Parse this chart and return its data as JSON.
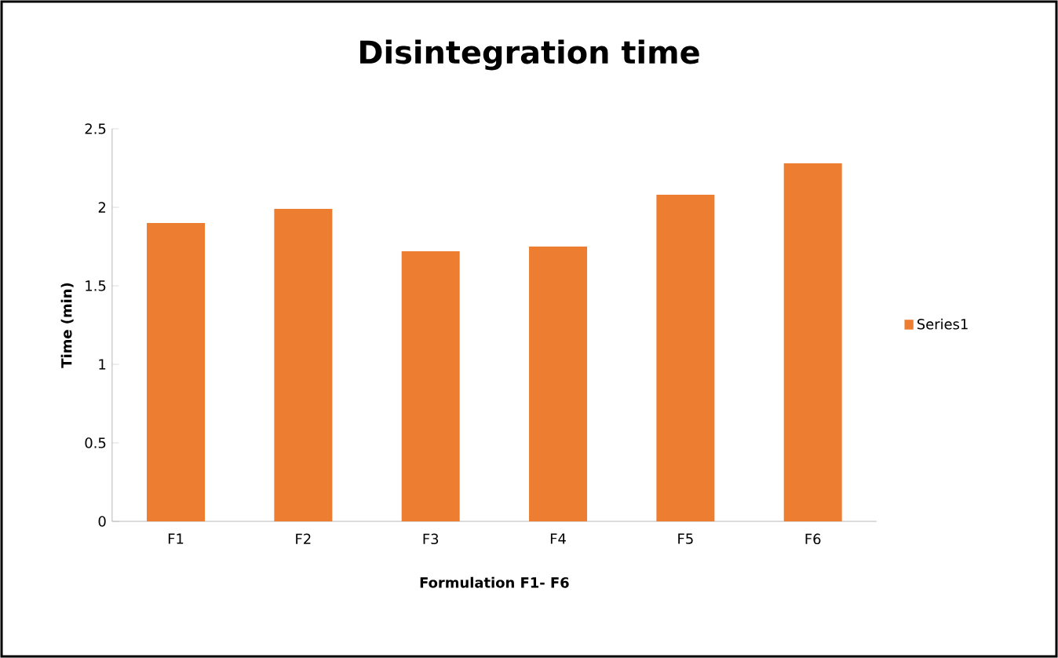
{
  "chart_data": {
    "type": "bar",
    "title": "Disintegration time",
    "xlabel": "Formulation F1- F6",
    "ylabel": "Time (min)",
    "categories": [
      "F1",
      "F2",
      "F3",
      "F4",
      "F5",
      "F6"
    ],
    "series": [
      {
        "name": "Series1",
        "color": "#ed7d31",
        "values": [
          1.9,
          1.99,
          1.72,
          1.75,
          2.08,
          2.28
        ]
      }
    ],
    "ylim": [
      0,
      2.5
    ],
    "yticks": [
      0,
      0.5,
      1,
      1.5,
      2,
      2.5
    ],
    "grid": false,
    "legend": "right"
  }
}
